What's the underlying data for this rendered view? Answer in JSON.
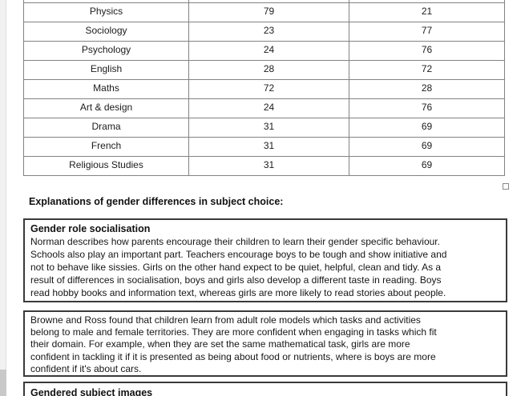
{
  "table": {
    "rows": [
      [
        "Physics",
        "79",
        "21"
      ],
      [
        "Sociology",
        "23",
        "77"
      ],
      [
        "Psychology",
        "24",
        "76"
      ],
      [
        "English",
        "28",
        "72"
      ],
      [
        "Maths",
        "72",
        "28"
      ],
      [
        "Art & design",
        "24",
        "76"
      ],
      [
        "Drama",
        "31",
        "69"
      ],
      [
        "French",
        "31",
        "69"
      ],
      [
        "Religious Studies",
        "31",
        "69"
      ]
    ]
  },
  "heading": "Explanations of gender differences in subject choice:",
  "boxes": [
    {
      "title": "Gender role socialisation",
      "body": "Norman describes how parents encourage their children to learn their gender specific behaviour.\nSchools also play an important part. Teachers encourage boys to be tough and show initiative and\nnot to behave like sissies. Girls on the other hand expect to be quiet, helpful, clean and tidy. As a\nresult of differences in socialisation, boys and girls also develop a different taste in reading. Boys\nread hobby books and information text, whereas girls are more likely to read stories about people."
    },
    {
      "title": "",
      "body": "Browne and Ross found that children learn from adult role models which tasks and activities\nbelong to male and female territories. They are more confident when engaging in tasks which fit\ntheir domain. For example, when they are set the same mathematical task, girls are more\nconfident in tackling it if it is presented as being about food or nutrients, where is boys are more\nconfident if it's about cars."
    },
    {
      "title": "Gendered subject images",
      "body": ""
    }
  ]
}
